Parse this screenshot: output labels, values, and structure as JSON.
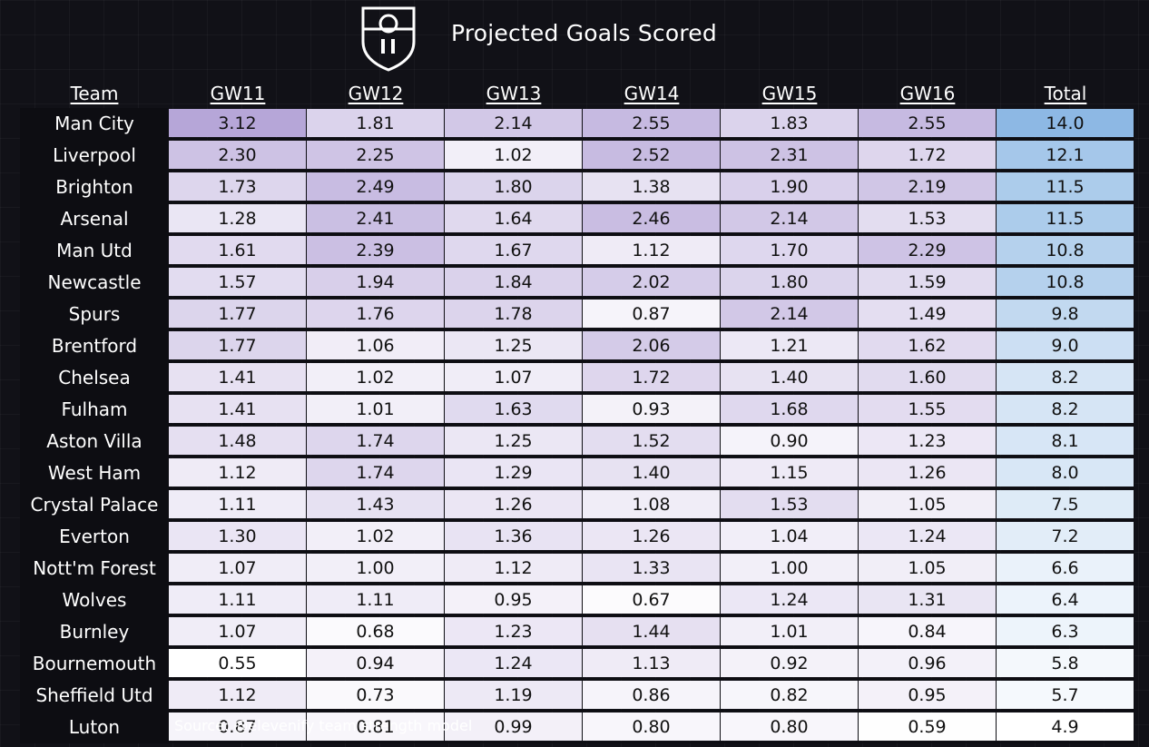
{
  "title": "Projected Goals Scored",
  "source": "Source: @elevenify team strength model",
  "chart_data": {
    "type": "table",
    "columns": [
      "Team",
      "GW11",
      "GW12",
      "GW13",
      "GW14",
      "GW15",
      "GW16",
      "Total"
    ],
    "rows": [
      {
        "team": "Man City",
        "values": [
          3.12,
          1.81,
          2.14,
          2.55,
          1.83,
          2.55
        ],
        "total": "14.0"
      },
      {
        "team": "Liverpool",
        "values": [
          2.3,
          2.25,
          1.02,
          2.52,
          2.31,
          1.72
        ],
        "total": "12.1"
      },
      {
        "team": "Brighton",
        "values": [
          1.73,
          2.49,
          1.8,
          1.38,
          1.9,
          2.19
        ],
        "total": "11.5"
      },
      {
        "team": "Arsenal",
        "values": [
          1.28,
          2.41,
          1.64,
          2.46,
          2.14,
          1.53
        ],
        "total": "11.5"
      },
      {
        "team": "Man Utd",
        "values": [
          1.61,
          2.39,
          1.67,
          1.12,
          1.7,
          2.29
        ],
        "total": "10.8"
      },
      {
        "team": "Newcastle",
        "values": [
          1.57,
          1.94,
          1.84,
          2.02,
          1.8,
          1.59
        ],
        "total": "10.8"
      },
      {
        "team": "Spurs",
        "values": [
          1.77,
          1.76,
          1.78,
          0.87,
          2.14,
          1.49
        ],
        "total": "9.8"
      },
      {
        "team": "Brentford",
        "values": [
          1.77,
          1.06,
          1.25,
          2.06,
          1.21,
          1.62
        ],
        "total": "9.0"
      },
      {
        "team": "Chelsea",
        "values": [
          1.41,
          1.02,
          1.07,
          1.72,
          1.4,
          1.6
        ],
        "total": "8.2"
      },
      {
        "team": "Fulham",
        "values": [
          1.41,
          1.01,
          1.63,
          0.93,
          1.68,
          1.55
        ],
        "total": "8.2"
      },
      {
        "team": "Aston Villa",
        "values": [
          1.48,
          1.74,
          1.25,
          1.52,
          0.9,
          1.23
        ],
        "total": "8.1"
      },
      {
        "team": "West Ham",
        "values": [
          1.12,
          1.74,
          1.29,
          1.4,
          1.15,
          1.26
        ],
        "total": "8.0"
      },
      {
        "team": "Crystal Palace",
        "values": [
          1.11,
          1.43,
          1.26,
          1.08,
          1.53,
          1.05
        ],
        "total": "7.5"
      },
      {
        "team": "Everton",
        "values": [
          1.3,
          1.02,
          1.36,
          1.26,
          1.04,
          1.24
        ],
        "total": "7.2"
      },
      {
        "team": "Nott'm Forest",
        "values": [
          1.07,
          1.0,
          1.12,
          1.33,
          1.0,
          1.05
        ],
        "total": "6.6"
      },
      {
        "team": "Wolves",
        "values": [
          1.11,
          1.11,
          0.95,
          0.67,
          1.24,
          1.31
        ],
        "total": "6.4"
      },
      {
        "team": "Burnley",
        "values": [
          1.07,
          0.68,
          1.23,
          1.44,
          1.01,
          0.84
        ],
        "total": "6.3"
      },
      {
        "team": "Bournemouth",
        "values": [
          0.55,
          0.94,
          1.24,
          1.13,
          0.92,
          0.96
        ],
        "total": "5.8"
      },
      {
        "team": "Sheffield Utd",
        "values": [
          1.12,
          0.73,
          1.19,
          0.86,
          0.82,
          0.95
        ],
        "total": "5.7"
      },
      {
        "team": "Luton",
        "values": [
          0.87,
          0.81,
          0.99,
          0.8,
          0.8,
          0.59
        ],
        "total": "4.9"
      }
    ]
  },
  "colors": {
    "background": "#111117",
    "gw_high": "#b6a6d8",
    "gw_low": "#ffffff",
    "total_high": "#8db8e4",
    "total_low": "#ffffff"
  }
}
